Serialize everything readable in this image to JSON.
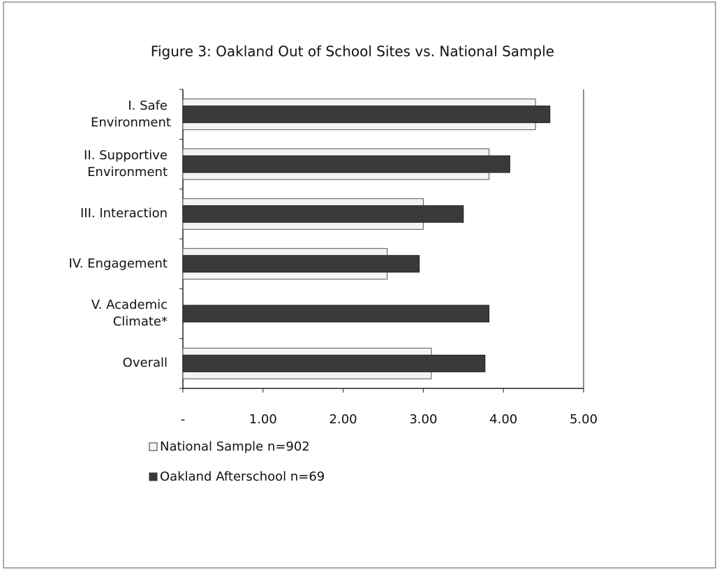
{
  "chart_data": {
    "type": "barh",
    "title": "Figure 3: Oakland Out of School Sites vs. National Sample",
    "categories": [
      "I. Safe Environment",
      "II. Supportive Environment",
      "III. Interaction",
      "IV. Engagement",
      "V. Academic Climate*",
      "Overall"
    ],
    "series": [
      {
        "name": "National Sample n=902",
        "color": "#f4f4f4",
        "values": [
          4.4,
          3.82,
          3.0,
          2.55,
          null,
          3.1
        ]
      },
      {
        "name": "Oakland Afterschool n=69",
        "color": "#3a3a3a",
        "values": [
          4.58,
          4.08,
          3.5,
          2.95,
          3.82,
          3.77
        ]
      }
    ],
    "xlim": [
      0,
      5
    ],
    "xticks": [
      {
        "value": 0,
        "label": "-"
      },
      {
        "value": 1,
        "label": "1.00"
      },
      {
        "value": 2,
        "label": "2.00"
      },
      {
        "value": 3,
        "label": "3.00"
      },
      {
        "value": 4,
        "label": "4.00"
      },
      {
        "value": 5,
        "label": "5.00"
      }
    ],
    "legend": "bottom-left"
  }
}
